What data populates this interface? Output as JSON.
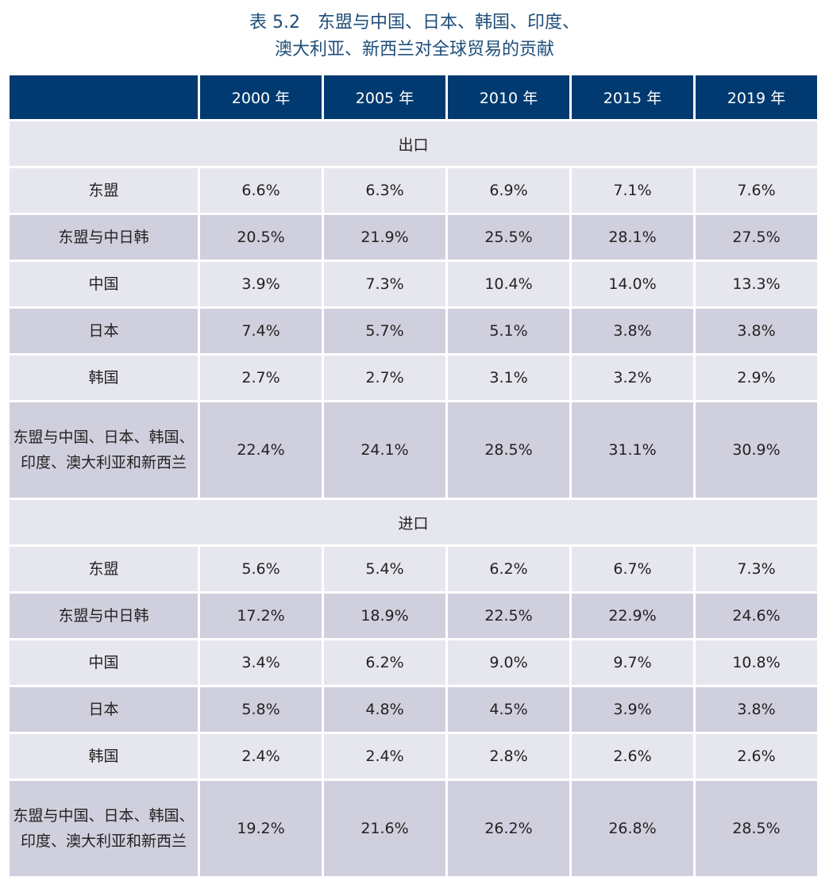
{
  "title": {
    "line1": "表 5.2　东盟与中国、日本、韩国、印度、",
    "line2": "澳大利亚、新西兰对全球贸易的贡献"
  },
  "header": [
    "",
    "2000 年",
    "2005 年",
    "2010 年",
    "2015 年",
    "2019 年"
  ],
  "sections": [
    {
      "label": "出口",
      "rows": [
        {
          "label": "东盟",
          "values": [
            "6.6%",
            "6.3%",
            "6.9%",
            "7.1%",
            "7.6%"
          ]
        },
        {
          "label": "东盟与中日韩",
          "values": [
            "20.5%",
            "21.9%",
            "25.5%",
            "28.1%",
            "27.5%"
          ]
        },
        {
          "label": "中国",
          "values": [
            "3.9%",
            "7.3%",
            "10.4%",
            "14.0%",
            "13.3%"
          ]
        },
        {
          "label": "日本",
          "values": [
            "7.4%",
            "5.7%",
            "5.1%",
            "3.8%",
            "3.8%"
          ]
        },
        {
          "label": "韩国",
          "values": [
            "2.7%",
            "2.7%",
            "3.1%",
            "3.2%",
            "2.9%"
          ]
        },
        {
          "label": "东盟与中国、日本、韩国、印度、澳大利亚和新西兰",
          "values": [
            "22.4%",
            "24.1%",
            "28.5%",
            "31.1%",
            "30.9%"
          ]
        }
      ]
    },
    {
      "label": "进口",
      "rows": [
        {
          "label": "东盟",
          "values": [
            "5.6%",
            "5.4%",
            "6.2%",
            "6.7%",
            "7.3%"
          ]
        },
        {
          "label": "东盟与中日韩",
          "values": [
            "17.2%",
            "18.9%",
            "22.5%",
            "22.9%",
            "24.6%"
          ]
        },
        {
          "label": "中国",
          "values": [
            "3.4%",
            "6.2%",
            "9.0%",
            "9.7%",
            "10.8%"
          ]
        },
        {
          "label": "日本",
          "values": [
            "5.8%",
            "4.8%",
            "4.5%",
            "3.9%",
            "3.8%"
          ]
        },
        {
          "label": "韩国",
          "values": [
            "2.4%",
            "2.4%",
            "2.8%",
            "2.6%",
            "2.6%"
          ]
        },
        {
          "label": "东盟与中国、日本、韩国、印度、澳大利亚和新西兰",
          "values": [
            "19.2%",
            "21.6%",
            "26.2%",
            "26.8%",
            "28.5%"
          ]
        }
      ]
    }
  ],
  "colors": {
    "header_bg": "#003a70",
    "title_text": "#1f4e79",
    "row_light": "#e6e6ee",
    "row_dark": "#cfcfdd"
  }
}
